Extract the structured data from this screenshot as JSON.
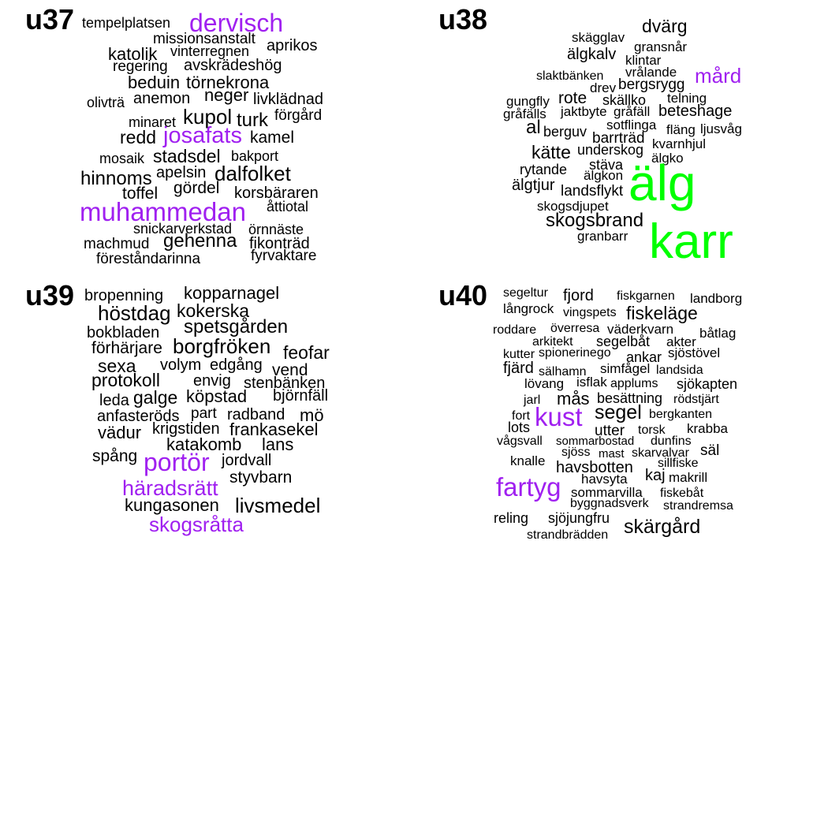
{
  "colors": {
    "default": "#000000",
    "purple": "#a020f0",
    "green": "#00ff00"
  },
  "panels": [
    {
      "label": "u37",
      "words": [
        "tempelplatsen",
        "dervisch",
        "missionsanstalt",
        "aprikos",
        "katolik",
        "vinterregnen",
        "regering",
        "avskrädeshög",
        "beduin",
        "törnekrona",
        "olivträ",
        "anemon",
        "neger",
        "livklädnad",
        "minaret",
        "kupol",
        "turk",
        "förgård",
        "redd",
        "josafats",
        "kamel",
        "mosaik",
        "stadsdel",
        "bakport",
        "hinnoms",
        "apelsin",
        "dalfolket",
        "toffel",
        "gördel",
        "korsbäraren",
        "muhammedan",
        "åttiotal",
        "snickarverkstad",
        "örnnäste",
        "machmud",
        "gehenna",
        "fikonträd",
        "föreståndarinna",
        "fyrvaktare"
      ]
    },
    {
      "label": "u38",
      "words": [
        "dvärg",
        "skägglav",
        "gransnår",
        "älgkalv",
        "klintar",
        "vrålande",
        "slaktbänken",
        "mård",
        "bergsrygg",
        "drev",
        "gungfly",
        "rote",
        "skällko",
        "telning",
        "gråfälls",
        "jaktbyte",
        "gråfäll",
        "beteshage",
        "al",
        "sotflinga",
        "fläng",
        "ljusvåg",
        "berguv",
        "barrträd",
        "kvarnhjul",
        "kätte",
        "underskog",
        "älgko",
        "stäva",
        "rytande",
        "älgkon",
        "älg",
        "älgtjur",
        "landsflykt",
        "skogsdjupet",
        "skogsbrand",
        "karr",
        "granbarr"
      ]
    },
    {
      "label": "u39",
      "words": [
        "bropenning",
        "kopparnagel",
        "höstdag",
        "kokerska",
        "bokbladen",
        "spetsgården",
        "förhärjare",
        "borgfröken",
        "feofar",
        "sexa",
        "volym",
        "edgång",
        "vend",
        "protokoll",
        "envig",
        "stenbänken",
        "leda",
        "galge",
        "köpstad",
        "björnfäll",
        "anfasteröds",
        "part",
        "radband",
        "mö",
        "vädur",
        "krigstiden",
        "frankasekel",
        "katakomb",
        "lans",
        "spång",
        "portör",
        "jordvall",
        "styvbarn",
        "häradsrätt",
        "kungasonen",
        "livsmedel",
        "skogsråtta"
      ]
    },
    {
      "label": "u40",
      "words": [
        "segeltur",
        "fjord",
        "fiskgarnen",
        "landborg",
        "långrock",
        "vingspets",
        "fiskeläge",
        "roddare",
        "överresa",
        "väderkvarn",
        "båtlag",
        "arkitekt",
        "segelbåt",
        "akter",
        "kutter",
        "spionerinego",
        "ankar",
        "sjöstövel",
        "fjärd",
        "sälhamn",
        "simfågel",
        "landsida",
        "lövang",
        "isflak",
        "applums",
        "sjökapten",
        "jarl",
        "mås",
        "besättning",
        "rödstjärt",
        "fort",
        "kust",
        "segel",
        "bergkanten",
        "lots",
        "utter",
        "torsk",
        "krabba",
        "vågsvall",
        "sommarbostad",
        "dunfins",
        "sjöss",
        "mast",
        "skarvalvar",
        "säl",
        "knalle",
        "havsbotten",
        "sillfiske",
        "havsyta",
        "kaj",
        "makrill",
        "fartyg",
        "sommarvilla",
        "fiskebåt",
        "byggnadsverk",
        "strandremsa",
        "reling",
        "sjöjungfru",
        "strandbrädden",
        "skärgård"
      ]
    }
  ]
}
